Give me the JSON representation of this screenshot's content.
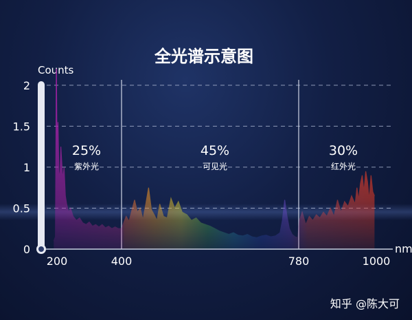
{
  "chart_data": {
    "type": "area",
    "title": "全光谱示意图",
    "ylabel": "Counts",
    "xlabel": "nm",
    "ylim": [
      0,
      2.2
    ],
    "yticks": [
      "0",
      "0.5",
      "1",
      "1.5",
      "2"
    ],
    "xticks": [
      {
        "label": "200",
        "value": 200
      },
      {
        "label": "400",
        "value": 400
      },
      {
        "label": "780",
        "value": 780
      },
      {
        "label": "1000",
        "value": 1000
      }
    ],
    "grid": true,
    "regions": [
      {
        "name": "紫外光",
        "percent": "25%",
        "range": [
          200,
          400
        ],
        "color": "#9b2d9e"
      },
      {
        "name": "可见光",
        "percent": "45%",
        "range": [
          400,
          780
        ],
        "color": "#e8a020"
      },
      {
        "name": "红外光",
        "percent": "30%",
        "range": [
          780,
          1000
        ],
        "color": "#e03a20"
      }
    ],
    "series": [
      {
        "x": [
          190,
          195,
          198,
          200,
          203,
          206,
          209,
          212,
          215,
          218,
          222,
          226,
          230,
          236,
          242,
          250,
          260,
          270,
          280,
          290,
          300,
          310,
          320,
          330,
          340,
          350,
          360,
          370,
          380,
          390,
          400,
          405,
          410,
          416,
          422,
          428,
          434,
          440,
          446,
          452,
          458,
          464,
          470,
          476,
          482,
          490,
          498,
          506,
          514,
          522,
          530,
          540,
          550,
          560,
          570,
          580,
          590,
          600,
          610,
          620,
          630,
          640,
          650,
          660,
          670,
          680,
          690,
          700,
          710,
          720,
          730,
          740,
          745,
          750,
          755,
          760,
          766,
          772,
          778,
          782,
          790,
          800,
          810,
          820,
          830,
          840,
          850,
          860,
          870,
          880,
          890,
          900,
          910,
          920,
          930,
          940,
          945,
          950,
          955,
          960,
          965,
          970,
          975,
          980,
          985,
          990,
          995
        ],
        "y": [
          0.1,
          0.15,
          2.25,
          1.3,
          1.55,
          0.95,
          0.85,
          1.25,
          1.05,
          0.85,
          1.0,
          0.65,
          0.55,
          0.45,
          0.5,
          0.4,
          0.35,
          0.38,
          0.32,
          0.3,
          0.33,
          0.28,
          0.3,
          0.27,
          0.3,
          0.26,
          0.28,
          0.25,
          0.27,
          0.25,
          0.25,
          0.33,
          0.4,
          0.34,
          0.47,
          0.6,
          0.45,
          0.5,
          0.36,
          0.55,
          0.75,
          0.48,
          0.42,
          0.35,
          0.55,
          0.4,
          0.38,
          0.62,
          0.5,
          0.58,
          0.45,
          0.42,
          0.35,
          0.38,
          0.32,
          0.3,
          0.28,
          0.25,
          0.22,
          0.2,
          0.18,
          0.2,
          0.17,
          0.16,
          0.18,
          0.15,
          0.14,
          0.16,
          0.17,
          0.15,
          0.16,
          0.2,
          0.35,
          0.6,
          0.4,
          0.25,
          0.18,
          0.15,
          0.14,
          0.35,
          0.45,
          0.3,
          0.4,
          0.35,
          0.42,
          0.38,
          0.45,
          0.4,
          0.5,
          0.4,
          0.6,
          0.45,
          0.58,
          0.52,
          0.65,
          0.55,
          0.75,
          0.6,
          0.8,
          0.9,
          0.7,
          0.95,
          0.82,
          0.6,
          0.9,
          0.7,
          0.65
        ]
      }
    ]
  },
  "watermark": "知乎 @陈大可"
}
